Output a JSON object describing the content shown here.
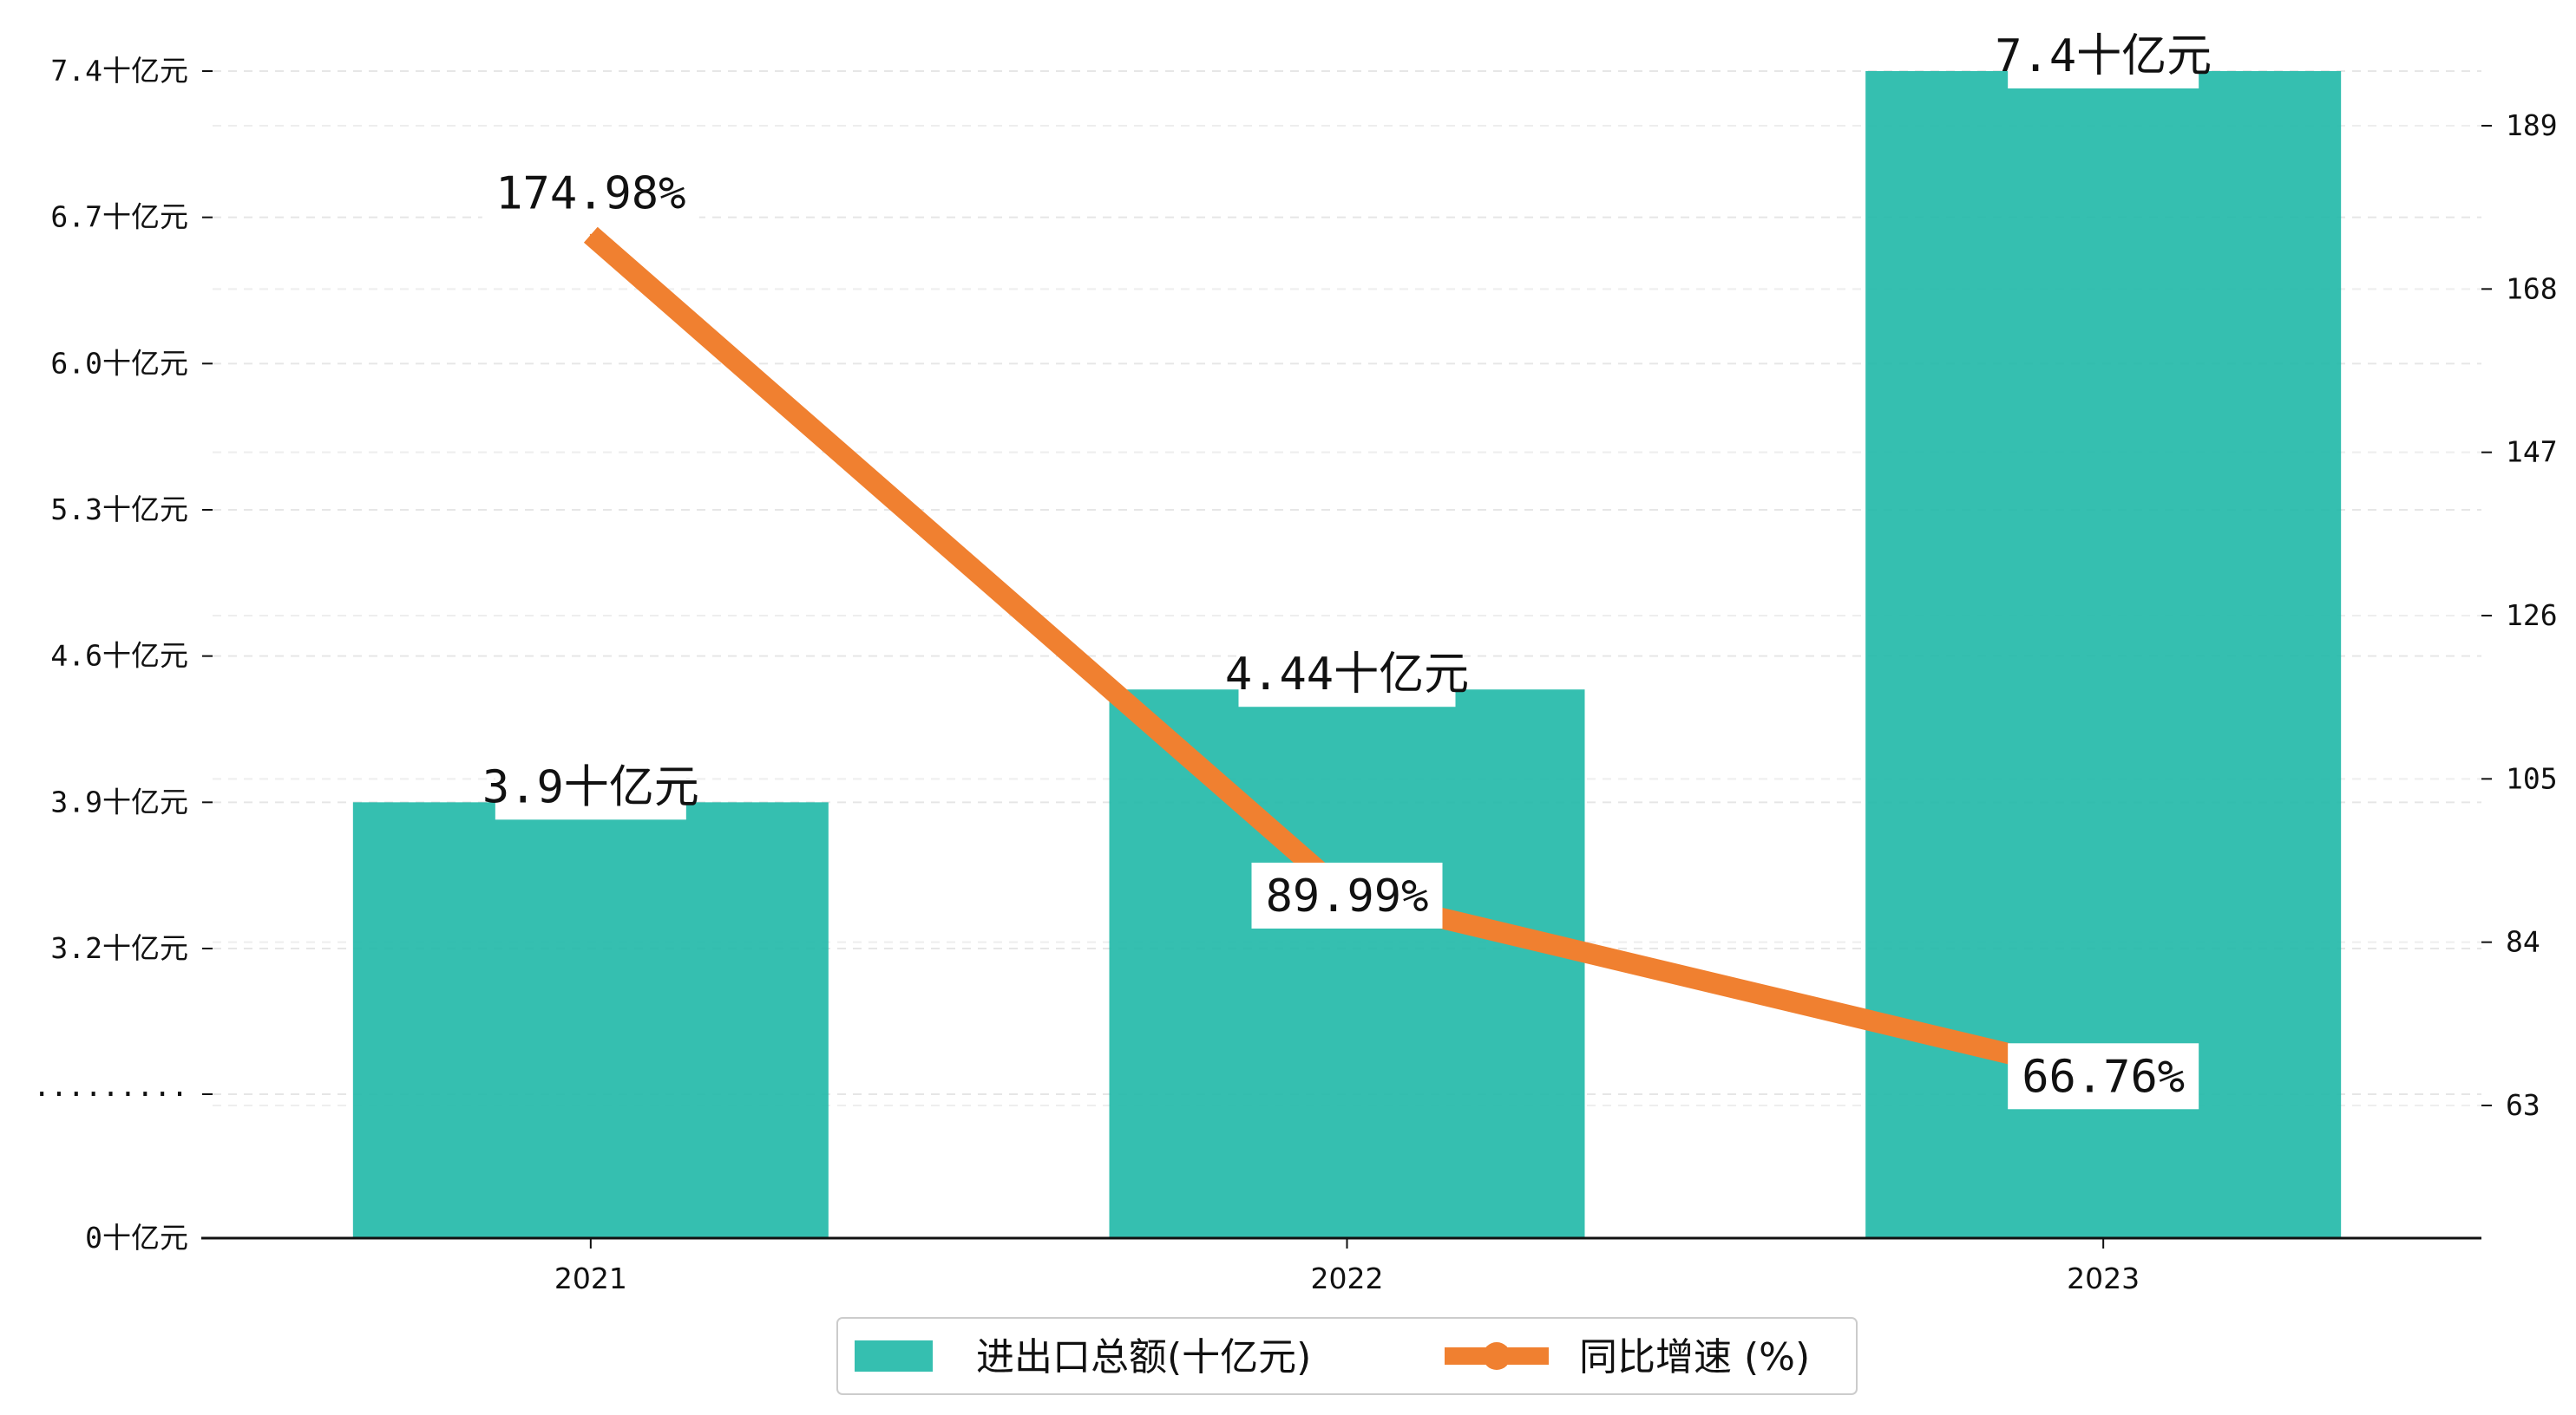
{
  "chart_data": {
    "type": "bar",
    "title": "",
    "categories": [
      "2021",
      "2022",
      "2023"
    ],
    "series": [
      {
        "name": "进出口总额(十亿元)",
        "kind": "bar",
        "axis": "left",
        "values": [
          3.9,
          4.44,
          7.4
        ],
        "value_labels": [
          "3.9十亿元",
          "4.44十亿元",
          "7.4十亿元"
        ],
        "color": "#1fb8a7"
      },
      {
        "name": "同比增速 (%)",
        "kind": "line",
        "axis": "right",
        "values": [
          174.98,
          89.99,
          66.76
        ],
        "value_labels": [
          "174.98%",
          "89.99%",
          "66.76%"
        ],
        "color": "#f08030"
      }
    ],
    "y_left": {
      "ticks": [
        0,
        2.5,
        3.2,
        3.9,
        4.6,
        5.3,
        6.0,
        6.7,
        7.4
      ],
      "tick_labels": [
        "0十亿元",
        "·········",
        "3.2十亿元",
        "3.9十亿元",
        "4.6十亿元",
        "5.3十亿元",
        "6.0十亿元",
        "6.7十亿元",
        "7.4十亿元"
      ],
      "ylim": [
        0,
        7.4
      ],
      "broken_axis": true
    },
    "y_right": {
      "ticks": [
        63,
        84,
        105,
        126,
        147,
        168,
        189
      ],
      "tick_labels": [
        "63",
        "84",
        "105",
        "126",
        "147",
        "168",
        "189"
      ],
      "ylim": [
        46,
        196
      ]
    },
    "grid": "horizontal-dashed",
    "legend_position": "bottom-center"
  }
}
